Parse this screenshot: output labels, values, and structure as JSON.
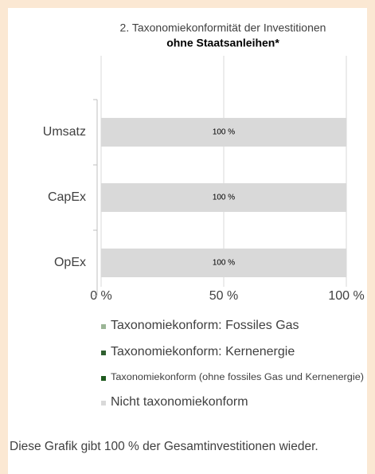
{
  "chart_data": {
    "type": "stacked-bar-horizontal",
    "title": "2. Taxonomiekonformität der Investitionen",
    "subtitle": "ohne Staatsanleihen*",
    "categories": [
      "Umsatz",
      "CapEx",
      "OpEx"
    ],
    "series": [
      {
        "name": "Taxonomiekonform: Fossiles Gas",
        "color": "#9bb596",
        "values": [
          0,
          0,
          0
        ]
      },
      {
        "name": "Taxonomiekonform: Kernenergie",
        "color": "#2f5f2f",
        "values": [
          0,
          0,
          0
        ]
      },
      {
        "name": "Taxonomiekonform (ohne fossiles Gas und Kernenergie)",
        "color": "#1e5a1e",
        "values": [
          0,
          0,
          0
        ],
        "value_labels": [
          "%",
          "%",
          "%"
        ]
      },
      {
        "name": "Nicht taxonomiekonform",
        "color": "#d9d9d9",
        "values": [
          100,
          100,
          100
        ],
        "value_labels": [
          "100 %",
          "100 %",
          "100 %"
        ]
      }
    ],
    "xlim": [
      0,
      100
    ],
    "xticks": [
      {
        "value": 0,
        "label": "0 %"
      },
      {
        "value": 50,
        "label": "50 %"
      },
      {
        "value": 100,
        "label": "100 %"
      }
    ],
    "grid": true,
    "footnote": "Diese Grafik gibt 100 % der Gesamtinvestitionen wieder."
  }
}
